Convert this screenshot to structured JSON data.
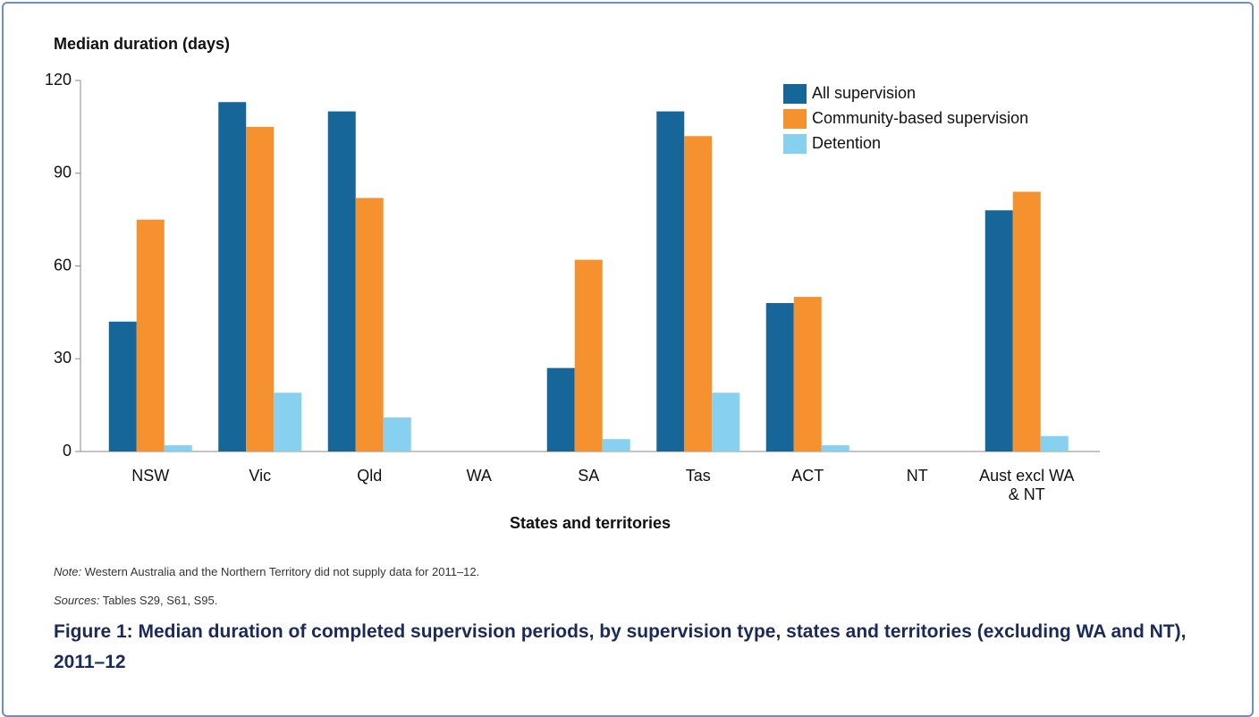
{
  "chart_data": {
    "type": "bar",
    "y_axis_title": "Median duration (days)",
    "x_axis_title": "States and territories",
    "categories": [
      "NSW",
      "Vic",
      "Qld",
      "WA",
      "SA",
      "Tas",
      "ACT",
      "NT",
      "Aust excl WA & NT"
    ],
    "series": [
      {
        "name": "All supervision",
        "color": "#16669a",
        "values": [
          42,
          113,
          110,
          null,
          27,
          110,
          48,
          null,
          78
        ]
      },
      {
        "name": "Community-based supervision",
        "color": "#f5922f",
        "values": [
          75,
          105,
          82,
          null,
          62,
          102,
          50,
          null,
          84
        ]
      },
      {
        "name": "Detention",
        "color": "#87d0f0",
        "values": [
          2,
          19,
          11,
          null,
          4,
          19,
          2,
          null,
          5
        ]
      }
    ],
    "ylim": [
      0,
      120
    ],
    "yticks": [
      0,
      30,
      60,
      90,
      120
    ],
    "grid": false,
    "legend": "top-right",
    "note_label": "Note:",
    "note": "Western Australia and the Northern Territory did not supply data for 2011–12.",
    "sources_label": "Sources:",
    "sources": "Tables S29, S61, S95.",
    "caption": "Figure 1: Median duration of completed supervision periods, by supervision type, states and territories (excluding WA and NT), 2011–12"
  }
}
